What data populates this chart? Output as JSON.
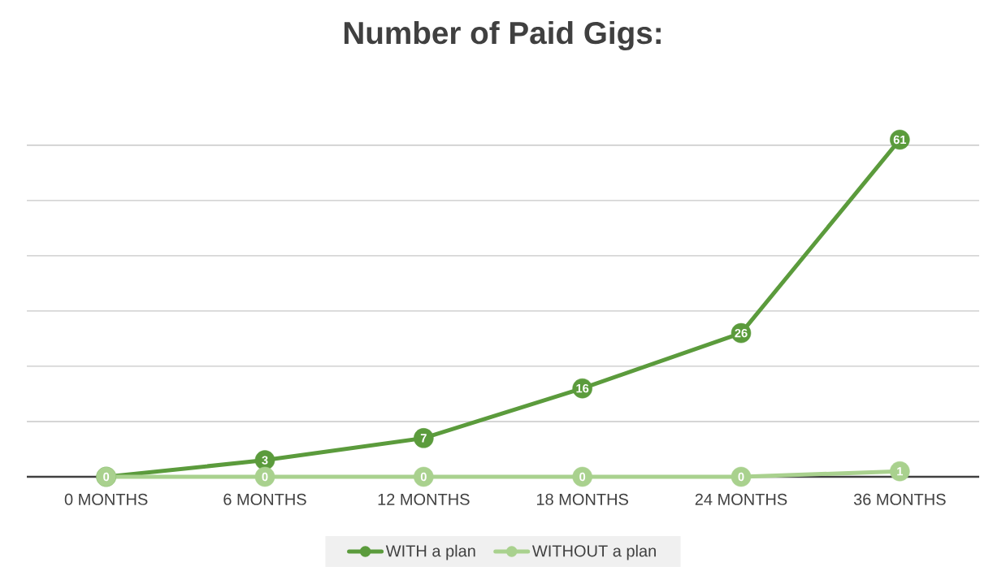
{
  "chart_data": {
    "type": "line",
    "title": "Number of Paid Gigs:",
    "categories": [
      "0 MONTHS",
      "6 MONTHS",
      "12 MONTHS",
      "18 MONTHS",
      "24 MONTHS",
      "36 MONTHS"
    ],
    "series": [
      {
        "name": "WITH a plan",
        "color": "#5b9b3c",
        "values": [
          0,
          3,
          7,
          16,
          26,
          61
        ],
        "value_labels": [
          null,
          "3",
          "7",
          "16",
          "26",
          "61"
        ]
      },
      {
        "name": "WITHOUT a plan",
        "color": "#a9d18e",
        "values": [
          0,
          0,
          0,
          0,
          0,
          1
        ],
        "value_labels": [
          "0",
          "0",
          "0",
          "0",
          "0",
          "1"
        ]
      }
    ],
    "tick_labels": "x",
    "grid": "y",
    "legend": "bottom",
    "marker": "circle",
    "line_style": "solid"
  }
}
